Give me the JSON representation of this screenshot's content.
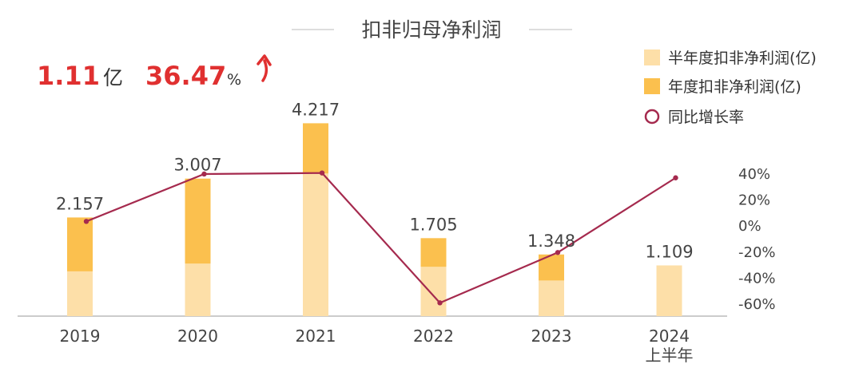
{
  "chart_data": {
    "type": "bar",
    "title": "扣非归母净利润",
    "categories": [
      [
        "2019"
      ],
      [
        "2020"
      ],
      [
        "2021"
      ],
      [
        "2022"
      ],
      [
        "2023"
      ],
      [
        "2024",
        "上半年"
      ]
    ],
    "series": [
      {
        "name": "半年度扣非净利润(亿)",
        "values": [
          0.98,
          1.15,
          3.12,
          1.08,
          0.78,
          1.109
        ]
      },
      {
        "name": "年度扣非净利润(亿)",
        "values": [
          2.157,
          3.007,
          4.217,
          1.705,
          1.348,
          null
        ]
      },
      {
        "name": "同比增长率",
        "type": "line",
        "values": [
          3.0,
          39.4,
          40.2,
          -59.6,
          -20.9,
          36.47
        ]
      }
    ],
    "data_labels": [
      "2.157",
      "3.007",
      "4.217",
      "1.705",
      "1.348",
      "1.109"
    ],
    "ylim_bar": [
      0,
      4.8
    ],
    "ylim_rate": [
      -60,
      40
    ],
    "rate_ticks": [
      "40%",
      "20%",
      "0%",
      "-20%",
      "-40%",
      "-60%"
    ],
    "summary": {
      "value": "1.11",
      "value_unit": "亿",
      "rate": "36.47",
      "rate_unit": "%",
      "trend": "up"
    },
    "legend_position": "top-right",
    "grid": false,
    "colors": {
      "half_year": "#FDDFA8",
      "annual": "#FBC04E",
      "rate_line": "#A52A4E",
      "highlight": "#E03030",
      "axis": "#BBBBBB",
      "text": "#333333"
    }
  }
}
